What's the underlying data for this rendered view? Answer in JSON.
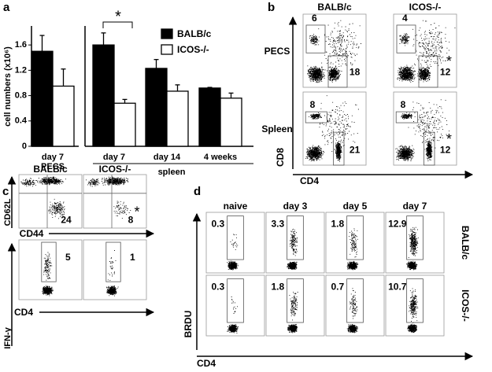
{
  "panels": [
    "a",
    "b",
    "c",
    "d"
  ],
  "chart_data": [
    {
      "type": "bar",
      "y_label": "cell numbers (x10⁶)",
      "categories": [
        "day 7"
      ],
      "group_label": "PECS",
      "series": [
        {
          "color": "#000000",
          "values": [
            1.5
          ],
          "errors": [
            0.25
          ]
        },
        {
          "color": "#ffffff",
          "values": [
            0.95
          ],
          "errors": [
            0.27
          ]
        }
      ],
      "ylim": [
        0,
        1.9
      ],
      "yticks": [
        0,
        0.4,
        0.8,
        1.2,
        1.6
      ]
    },
    {
      "type": "bar",
      "categories": [
        "day 7",
        "day 14",
        "4 weeks"
      ],
      "group_label": "spleen",
      "annotation": "*",
      "series": [
        {
          "name": "BALB/c",
          "color": "#000000",
          "values": [
            1.6,
            1.23,
            0.92
          ],
          "errors": [
            0.19,
            0.14,
            0.01
          ]
        },
        {
          "name": "ICOS-/-",
          "color": "#ffffff",
          "values": [
            0.68,
            0.87,
            0.76
          ],
          "errors": [
            0.06,
            0.1,
            0.08
          ]
        }
      ],
      "ylim": [
        0,
        1.9
      ]
    }
  ],
  "panel_b": {
    "columns": [
      "BALB/c",
      "ICOS-/-"
    ],
    "rows": [
      "PECS",
      "Spleen"
    ],
    "y_axis": "CD8",
    "x_axis": "CD4",
    "annotation": "*",
    "gates": [
      [
        6,
        18
      ],
      [
        4,
        12
      ],
      [
        8,
        21
      ],
      [
        8,
        12
      ]
    ]
  },
  "panel_c": {
    "columns": [
      "BALB/c",
      "ICOS-/-"
    ],
    "top_y_axis": "CD62L",
    "top_x_axis": "CD44",
    "bottom_y_axis": "IFN-γ",
    "bottom_x_axis": "CD4",
    "annotation": "*",
    "gates": [
      [
        24,
        8
      ],
      [
        5,
        1
      ]
    ]
  },
  "panel_d": {
    "columns": [
      "naive",
      "day 3",
      "day 5",
      "day 7"
    ],
    "rows": [
      "BALB/c",
      "ICOS-/-"
    ],
    "y_axis": "BRDU",
    "x_axis": "CD4",
    "gates": [
      [
        0.3,
        3.3,
        1.8,
        12.9
      ],
      [
        0.3,
        1.8,
        0.7,
        10.7
      ]
    ]
  }
}
